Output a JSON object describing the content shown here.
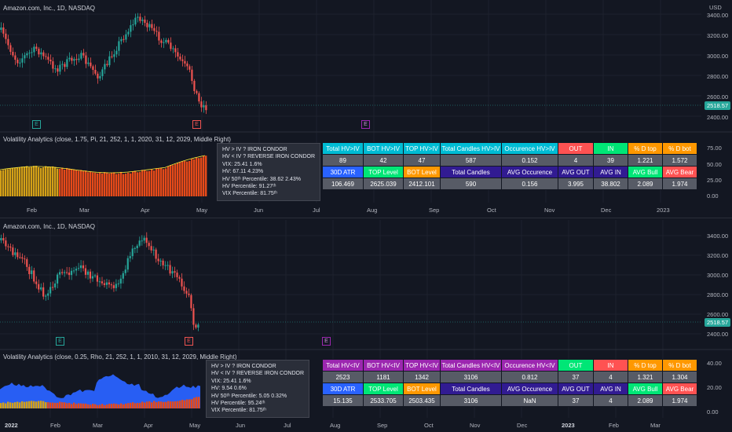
{
  "top": {
    "symbol_label": "Amazon.com, Inc., 1D, NASDAQ",
    "currency": "USD",
    "price_ticks": [
      "3400.00",
      "3200.00",
      "3000.00",
      "2800.00",
      "2600.00",
      "2400.00"
    ],
    "last_price": "2518.57",
    "indicator_label": "Volatility Analytics (close, 1.75, Pi, 21, 252, 1, 1, 2020, 31, 12, 2029, Middle Right)",
    "indicator_ticks": [
      "75.00",
      "50.00",
      "25.00",
      "0.00"
    ],
    "time_ticks": [
      "Feb",
      "Mar",
      "Apr",
      "May",
      "Jun",
      "Jul",
      "Aug",
      "Sep",
      "Oct",
      "Nov",
      "Dec",
      "2023"
    ],
    "earnings_marks": [
      "E",
      "E",
      "E"
    ],
    "tooltip": [
      "HV > IV ? IRON CONDOR",
      "HV < IV ? REVERSE IRON CONDOR",
      "VIX: 25.41  1.6%",
      "HV: 67.11  4.23%",
      "HV 50ᵗʰ Percentile: 38.62  2.43%",
      "HV Percentile: 91.27ᵗʰ",
      "VIX Percentile: 81.75ᵗʰ"
    ],
    "table_header1": [
      "Total  HV>IV",
      "BOT  HV>IV",
      "TOP  HV>IV",
      "Total Candles HV>IV",
      "Occurence  HV>IV",
      "OUT",
      "IN",
      "% D top",
      "% D bot"
    ],
    "table_row1": [
      "89",
      "42",
      "47",
      "587",
      "0.152",
      "4",
      "39",
      "1.221",
      "1.572"
    ],
    "table_header2": [
      "30D ATR",
      "TOP Level",
      "BOT Level",
      "Total Candles",
      "AVG Occurence",
      "AVG OUT",
      "AVG IN",
      "AVG Bull",
      "AVG Bear"
    ],
    "table_row2": [
      "106.469",
      "2625.039",
      "2412.101",
      "590",
      "0.156",
      "3.995",
      "38.802",
      "2.089",
      "1.974"
    ]
  },
  "bottom": {
    "symbol_label": "Amazon.com, Inc., 1D, NASDAQ",
    "price_ticks": [
      "3400.00",
      "3200.00",
      "3000.00",
      "2800.00",
      "2600.00",
      "2400.00"
    ],
    "last_price": "2518.57",
    "indicator_label": "Volatility Analytics (close, 0.25, Rho, 21, 252, 1, 1, 2010, 31, 12, 2029, Middle Right)",
    "indicator_ticks": [
      "40.00",
      "20.00",
      "0.00"
    ],
    "time_ticks": [
      "2022",
      "Feb",
      "Mar",
      "Apr",
      "May",
      "Jun",
      "Jul",
      "Aug",
      "Sep",
      "Oct",
      "Nov",
      "Dec",
      "2023",
      "Feb",
      "Mar"
    ],
    "earnings_marks": [
      "E",
      "E",
      "E"
    ],
    "tooltip": [
      "HV > IV ? IRON CONDOR",
      "HV < IV ? REVERSE IRON CONDOR",
      "VIX: 25.41  1.6%",
      "HV: 9.54  0.6%",
      "HV 50ᵗʰ Percentile: 5.05  0.32%",
      "HV Percentile: 95.24ᵗʰ",
      "VIX Percentile: 81.75ᵗʰ"
    ],
    "table_header1": [
      "Total  HV<IV",
      "BOT  HV<IV",
      "TOP  HV<IV",
      "Total Candles HV<IV",
      "Occurence  HV<IV",
      "OUT",
      "IN",
      "% D top",
      "% D bot"
    ],
    "table_row1": [
      "2523",
      "1181",
      "1342",
      "3106",
      "0.812",
      "37",
      "4",
      "1.321",
      "1.304"
    ],
    "table_header2": [
      "30D ATR",
      "TOP Level",
      "BOT Level",
      "Total Candles",
      "AVG Occurence",
      "AVG OUT",
      "AVG IN",
      "AVG Bull",
      "AVG Bear"
    ],
    "table_row2": [
      "15.135",
      "2533.705",
      "2503.435",
      "3106",
      "NaN",
      "37",
      "4",
      "2.089",
      "1.974"
    ]
  },
  "colors": {
    "bull": "#26a69a",
    "bear": "#ef5350",
    "teal_header": "#00bcd4",
    "purple_header": "#9c27b0",
    "navy_header": "#311b92",
    "blue_header": "#2962ff",
    "green_header": "#00e676",
    "orange_header": "#ff9800",
    "red_header": "#ff5252"
  }
}
